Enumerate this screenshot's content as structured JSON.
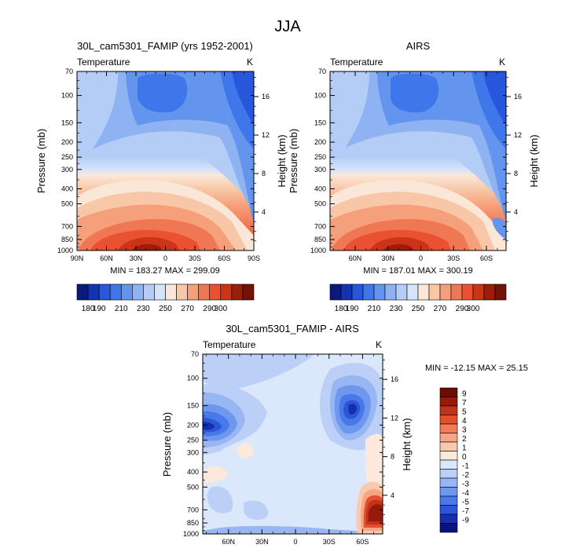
{
  "figure": {
    "title": "JJA"
  },
  "chart_data": [
    {
      "type": "heatmap",
      "title": "30L_cam5301_FAMIP (yrs 1952-2001)",
      "left_label": "Temperature",
      "right_label": "K",
      "ylabel": "Pressure (mb)",
      "y2label": "Height (km)",
      "x_tick_labels": [
        "90N",
        "60N",
        "30N",
        "0",
        "30S",
        "60S",
        "90S"
      ],
      "y_tick_labels": [
        "70",
        "100",
        "150",
        "200",
        "250",
        "300",
        "400",
        "500",
        "700",
        "850",
        "1000"
      ],
      "y2_tick_labels": [
        "16",
        "12",
        "8",
        "4"
      ],
      "stats": "MIN = 183.27   MAX = 299.09",
      "min": 183.27,
      "max": 299.09,
      "colorbar_labels": [
        "180",
        "190",
        "210",
        "230",
        "250",
        "270",
        "290",
        "300"
      ],
      "colorbar_orientation": "horizontal"
    },
    {
      "type": "heatmap",
      "title": "AIRS",
      "left_label": "Temperature",
      "right_label": "K",
      "ylabel": "Pressure (mb)",
      "y2label": "Height (km)",
      "x_tick_labels": [
        "60N",
        "30N",
        "0",
        "30S",
        "60S"
      ],
      "y_tick_labels": [
        "70",
        "100",
        "150",
        "200",
        "250",
        "300",
        "400",
        "500",
        "700",
        "850",
        "1000"
      ],
      "y2_tick_labels": [
        "16",
        "12",
        "8",
        "4"
      ],
      "stats": "MIN = 187.01   MAX = 300.19",
      "min": 187.01,
      "max": 300.19,
      "colorbar_labels": [
        "180",
        "190",
        "210",
        "230",
        "250",
        "270",
        "290",
        "300"
      ],
      "colorbar_orientation": "horizontal"
    },
    {
      "type": "heatmap",
      "title": "30L_cam5301_FAMIP - AIRS",
      "left_label": "Temperature",
      "right_label": "K",
      "ylabel": "Pressure (mb)",
      "y2label": "Height (km)",
      "x_tick_labels": [
        "60N",
        "30N",
        "0",
        "30S",
        "60S"
      ],
      "y_tick_labels": [
        "70",
        "100",
        "150",
        "200",
        "250",
        "300",
        "400",
        "500",
        "700",
        "850",
        "1000"
      ],
      "y2_tick_labels": [
        "16",
        "12",
        "8",
        "4"
      ],
      "stats": "MIN = -12.15   MAX =  25.15",
      "min": -12.15,
      "max": 25.15,
      "colorbar_labels": [
        "9",
        "7",
        "5",
        "4",
        "3",
        "2",
        "1",
        "0",
        "-1",
        "-2",
        "-3",
        "-4",
        "-5",
        "-7",
        "-9"
      ],
      "colorbar_orientation": "vertical"
    }
  ],
  "colormap": [
    "#0a1a7a",
    "#1432b4",
    "#2856dc",
    "#3f76ea",
    "#6495ee",
    "#8fb2f2",
    "#b4cdf6",
    "#d5e4fb",
    "#fbe7d8",
    "#f8c7a7",
    "#f5a07b",
    "#f07753",
    "#ea5131",
    "#cc3418",
    "#9c1d0c",
    "#741108"
  ],
  "diff_colormap": [
    "#08147a",
    "#1430b0",
    "#2c56d8",
    "#4878ea",
    "#6e98ee",
    "#97b6f2",
    "#bccff7",
    "#dbe8fc",
    "#fce9db",
    "#f9caae",
    "#f6a684",
    "#f27c58",
    "#e4502f",
    "#c2331a",
    "#97190b",
    "#6f0b05"
  ]
}
